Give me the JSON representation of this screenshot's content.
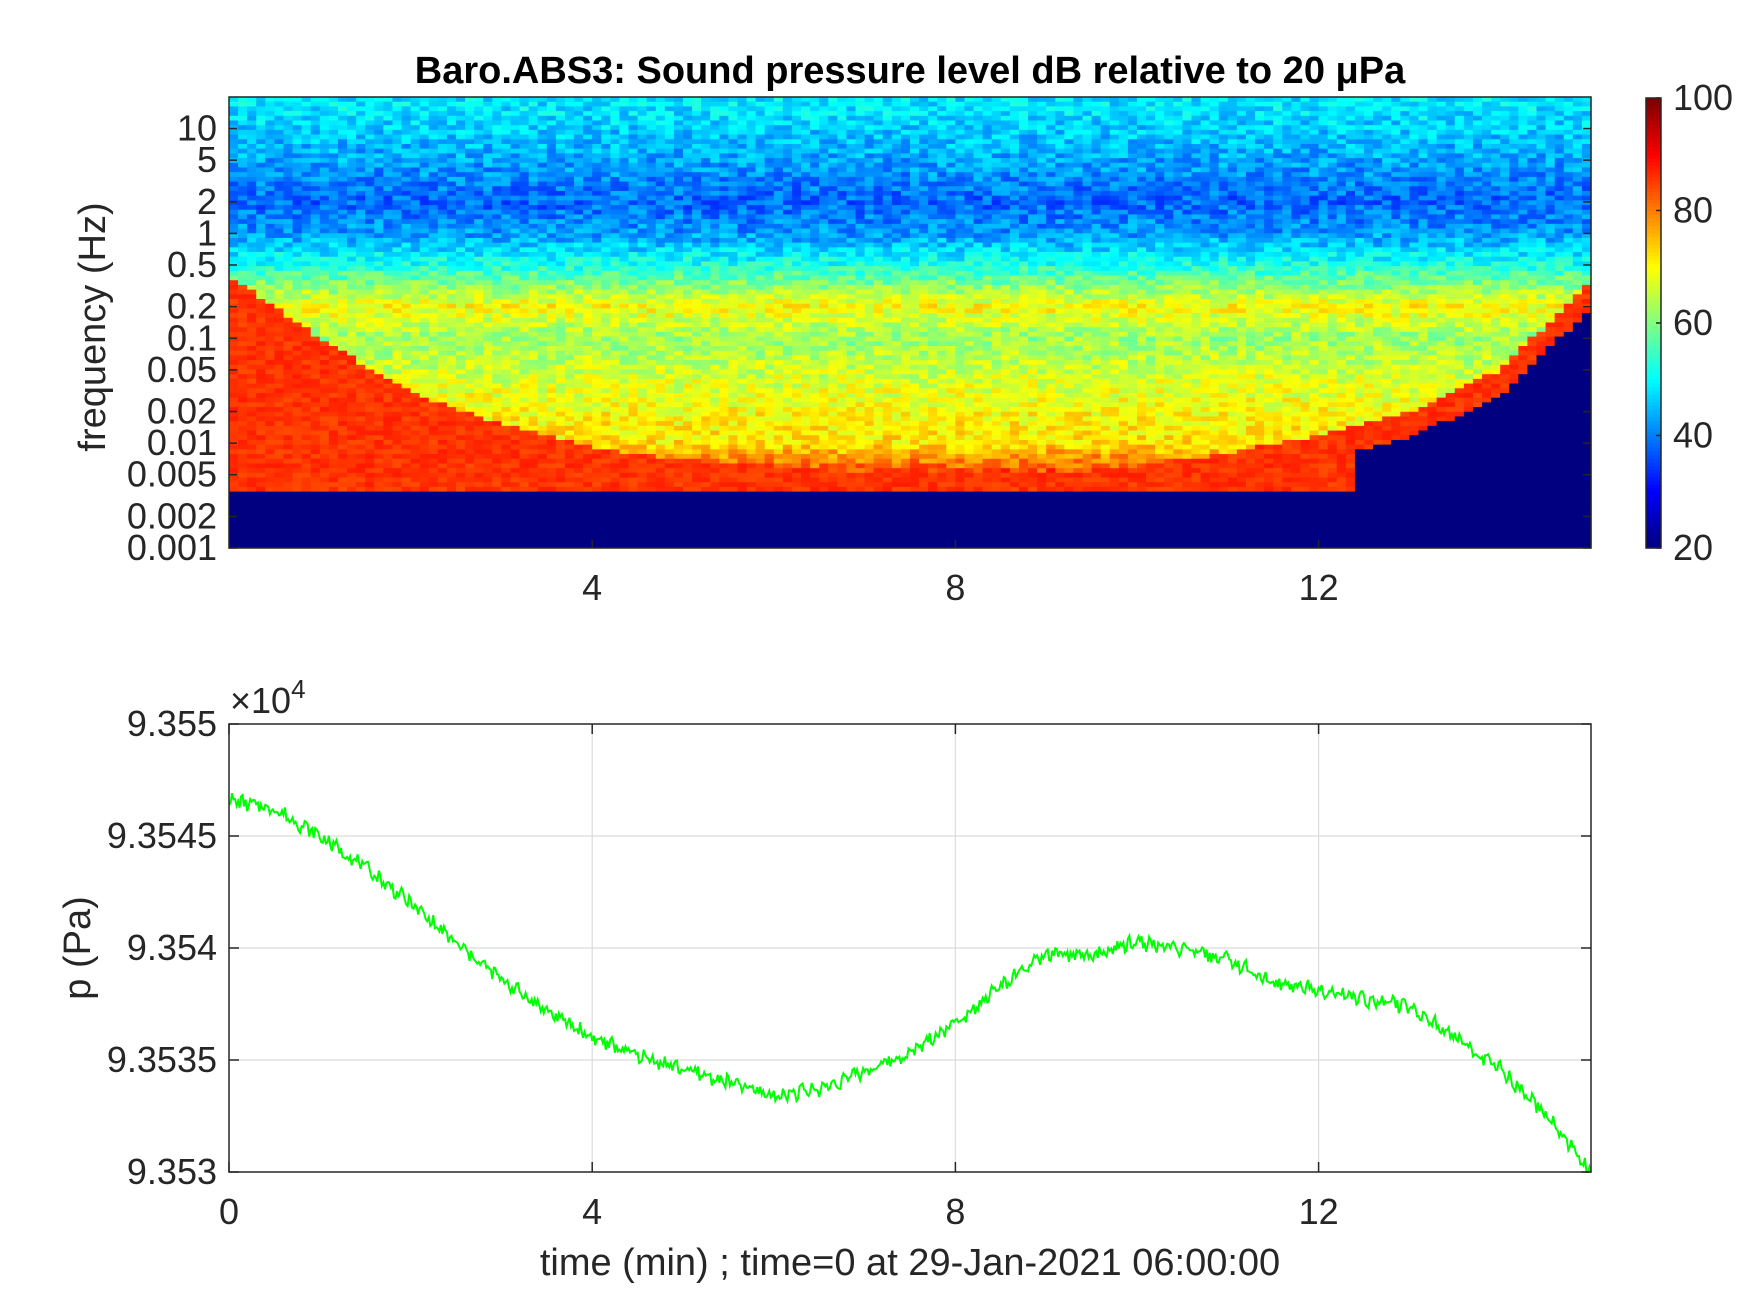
{
  "chart_data": [
    {
      "type": "heatmap",
      "title": "Baro.ABS3: Sound pressure level dB relative to 20 μPa",
      "ylabel": "frequency (Hz)",
      "xlabel": "",
      "xlim": [
        0,
        15
      ],
      "x_ticks": [
        4,
        8,
        12
      ],
      "y_scale": "log",
      "ylim": [
        0.001,
        20
      ],
      "y_ticks": [
        10,
        5,
        2,
        1,
        0.5,
        0.2,
        0.1,
        0.05,
        0.02,
        0.01,
        0.005,
        0.002,
        0.001
      ],
      "y_tick_labels": [
        "10",
        "5",
        "2",
        "1",
        "0.5",
        "0.2",
        "0.1",
        "0.05",
        "0.02",
        "0.01",
        "0.005",
        "0.002",
        "0.001"
      ],
      "colorbar": {
        "clim": [
          20,
          100
        ],
        "ticks": [
          20,
          40,
          60,
          80,
          100
        ],
        "tick_labels": [
          "20",
          "40",
          "60",
          "80",
          "100"
        ],
        "colormap": "jet"
      },
      "levels_db_by_frequency": [
        {
          "f_hz": 15,
          "db": 48
        },
        {
          "f_hz": 5,
          "db": 43
        },
        {
          "f_hz": 2,
          "db": 38
        },
        {
          "f_hz": 1,
          "db": 42
        },
        {
          "f_hz": 0.5,
          "db": 52
        },
        {
          "f_hz": 0.2,
          "db": 70
        },
        {
          "f_hz": 0.1,
          "db": 62
        },
        {
          "f_hz": 0.05,
          "db": 66
        },
        {
          "f_hz": 0.02,
          "db": 70
        },
        {
          "f_hz": 0.01,
          "db": 72
        },
        {
          "f_hz": 0.005,
          "db": 86
        },
        {
          "f_hz": 0.002,
          "db": 20
        }
      ],
      "edge_effect_cutoff_hz": [
        {
          "t": 0,
          "f_hz": 0.4
        },
        {
          "t": 1,
          "f_hz": 0.1
        },
        {
          "t": 2,
          "f_hz": 0.03
        },
        {
          "t": 3,
          "f_hz": 0.015
        },
        {
          "t": 4,
          "f_hz": 0.009
        },
        {
          "t": 5,
          "f_hz": 0.007
        },
        {
          "t": 6,
          "f_hz": 0.006
        },
        {
          "t": 7,
          "f_hz": 0.005
        },
        {
          "t": 8,
          "f_hz": 0.005
        },
        {
          "t": 9,
          "f_hz": 0.005
        },
        {
          "t": 10,
          "f_hz": 0.006
        },
        {
          "t": 11,
          "f_hz": 0.008
        },
        {
          "t": 12,
          "f_hz": 0.012
        },
        {
          "t": 13,
          "f_hz": 0.02
        },
        {
          "t": 14,
          "f_hz": 0.05
        },
        {
          "t": 15,
          "f_hz": 0.35
        }
      ],
      "masked_below_hz": 0.0035
    },
    {
      "type": "line",
      "ylabel": "p (Pa)",
      "xlabel": "time (min) ; time=0 at 29-Jan-2021 06:00:00",
      "xlim": [
        0,
        15
      ],
      "ylim": [
        93530,
        93550
      ],
      "x_ticks": [
        0,
        4,
        8,
        12
      ],
      "x_tick_labels": [
        "0",
        "4",
        "8",
        "12"
      ],
      "y_ticks": [
        93530,
        93535,
        93540,
        93545,
        93550
      ],
      "y_tick_labels": [
        "9.353",
        "9.3535",
        "9.354",
        "9.3545",
        "9.355"
      ],
      "y_exponent_label": "×10",
      "y_exponent_power": "4",
      "grid": true,
      "line_color": "#00ff00",
      "series": [
        {
          "x": [
            0,
            0.5,
            1,
            1.5,
            2,
            2.5,
            3,
            3.5,
            4,
            4.5,
            5,
            5.5,
            6,
            6.5,
            7,
            7.5,
            8,
            8.5,
            9,
            9.5,
            10,
            10.5,
            11,
            11.5,
            12,
            12.5,
            13,
            13.5,
            14,
            14.5,
            15
          ],
          "y": [
            93546.6,
            93546.2,
            93545,
            93543.6,
            93542,
            93540.2,
            93538.6,
            93537.2,
            93536,
            93535.2,
            93534.6,
            93534,
            93533.4,
            93533.7,
            93534.5,
            93535.3,
            93536.7,
            93538.3,
            93539.7,
            93539.6,
            93540.3,
            93539.9,
            93539.5,
            93538.4,
            93538.2,
            93537.7,
            93537.4,
            93536,
            93534.6,
            93532.6,
            93530
          ]
        }
      ]
    }
  ]
}
